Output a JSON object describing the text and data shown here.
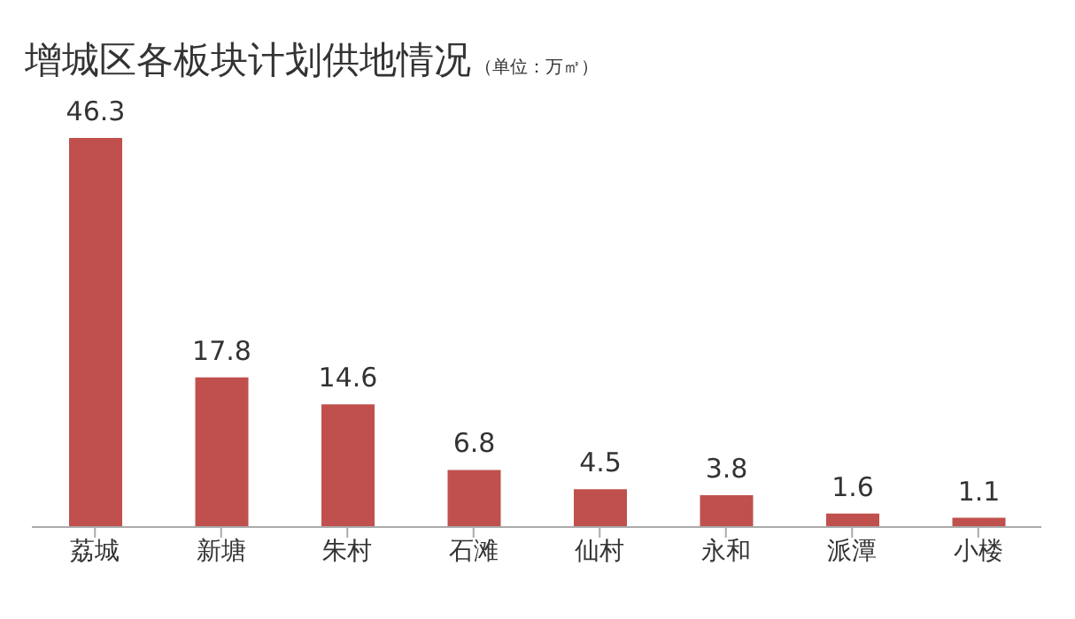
{
  "chart_data": {
    "type": "bar",
    "title": "增城区各板块计划供地情况",
    "subtitle": "（单位：万㎡）",
    "categories": [
      "荔城",
      "新塘",
      "朱村",
      "石滩",
      "仙村",
      "永和",
      "派潭",
      "小楼"
    ],
    "values": [
      46.3,
      17.8,
      14.6,
      6.8,
      4.5,
      3.8,
      1.6,
      1.1
    ],
    "color": "#c0504d",
    "data_labels": true
  }
}
